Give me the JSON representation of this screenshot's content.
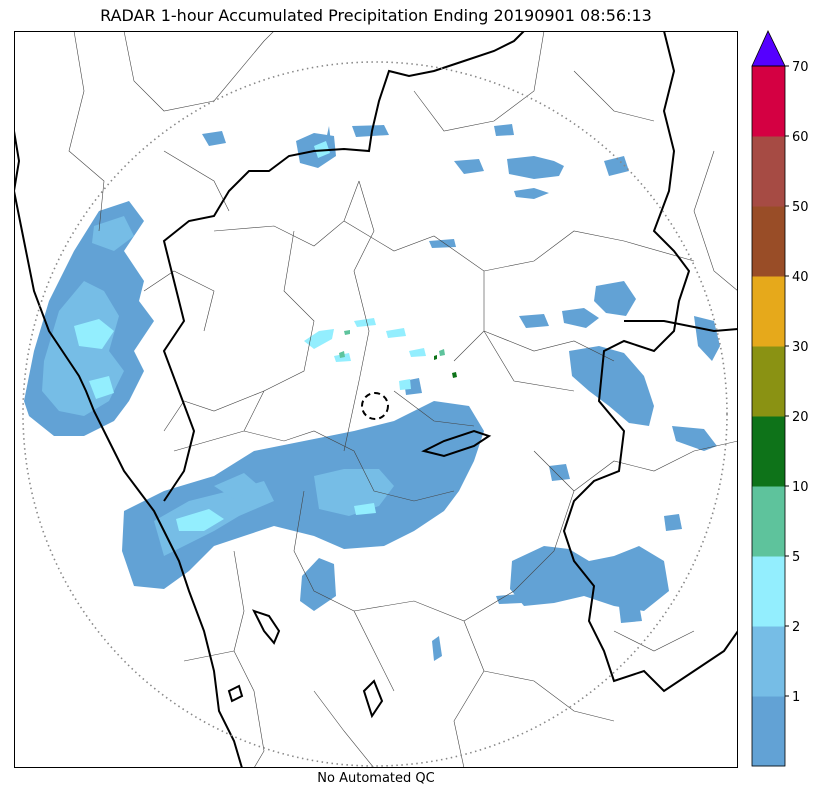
{
  "title": "RADAR 1-hour Accumulated Precipitation Ending 20190901 08:56:13",
  "footer": "No Automated QC",
  "colorbar": {
    "labels": [
      "1",
      "2",
      "5",
      "10",
      "20",
      "30",
      "40",
      "50",
      "60",
      "70"
    ],
    "colors": [
      "#62a2d5",
      "#76bde6",
      "#93eefe",
      "#5ec39c",
      "#0e7319",
      "#8a9213",
      "#e6a91b",
      "#994d27",
      "#a64b44",
      "#d40042"
    ],
    "overflow_color": "#5500ff"
  },
  "palette": {
    "light_blue": "#62a2d5",
    "mid_blue": "#76bde6",
    "cyan": "#93eefe",
    "green": "#5ec39c",
    "range_ring": "#888888"
  }
}
